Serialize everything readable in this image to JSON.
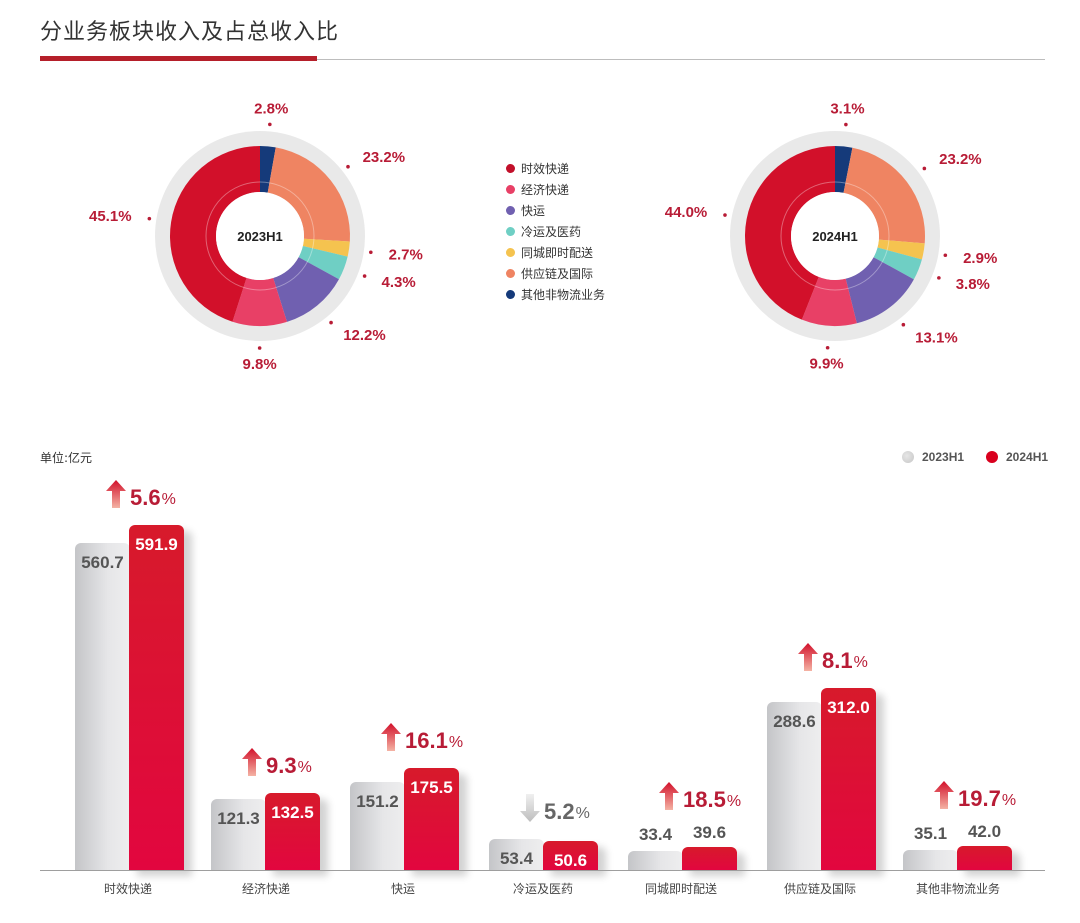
{
  "header": {
    "title": "分业务板块收入及占总收入比"
  },
  "colors": {
    "accent": "#b51f2a",
    "bar_2023": "#d0d0d2",
    "bar_2024": "#dc0a35",
    "label_red": "#b81c36",
    "segments": [
      "#d2102a",
      "#e84066",
      "#7060b0",
      "#6fcfc4",
      "#f5c34f",
      "#ef8462",
      "#153a7a"
    ]
  },
  "legend": {
    "items": [
      {
        "label": "时效快递",
        "color": "#c2102a"
      },
      {
        "label": "经济快递",
        "color": "#e84066"
      },
      {
        "label": "快运",
        "color": "#7060b0"
      },
      {
        "label": "冷运及医药",
        "color": "#6fcfc4"
      },
      {
        "label": "同城即时配送",
        "color": "#f5c34f"
      },
      {
        "label": "供应链及国际",
        "color": "#ef8462"
      },
      {
        "label": "其他非物流业务",
        "color": "#153a7a"
      }
    ]
  },
  "bar_section": {
    "unit": "单位:亿元",
    "legend": [
      {
        "label": "2023H1",
        "color": "#d0d0d2"
      },
      {
        "label": "2024H1",
        "color": "#dc0a35"
      }
    ]
  },
  "chart_data": [
    {
      "type": "pie",
      "title": "2023H1",
      "categories": [
        "时效快递",
        "经济快递",
        "快运",
        "冷运及医药",
        "同城即时配送",
        "供应链及国际",
        "其他非物流业务"
      ],
      "values": [
        45.1,
        9.8,
        12.2,
        4.3,
        2.7,
        23.2,
        2.8
      ],
      "labels": [
        "45.1%",
        "9.8%",
        "12.2%",
        "4.3%",
        "2.7%",
        "23.2%",
        "2.8%"
      ],
      "center_label": "2023H1",
      "style": "donut"
    },
    {
      "type": "pie",
      "title": "2024H1",
      "categories": [
        "时效快递",
        "经济快递",
        "快运",
        "冷运及医药",
        "同城即时配送",
        "供应链及国际",
        "其他非物流业务"
      ],
      "values": [
        44.0,
        9.9,
        13.1,
        3.8,
        2.9,
        23.2,
        3.1
      ],
      "labels": [
        "44.0%",
        "9.9%",
        "13.1%",
        "3.8%",
        "2.9%",
        "23.2%",
        "3.1%"
      ],
      "center_label": "2024H1",
      "style": "donut"
    },
    {
      "type": "bar",
      "title": "分业务板块收入",
      "ylabel": "单位:亿元",
      "categories": [
        "时效快递",
        "经济快递",
        "快运",
        "冷运及医药",
        "同城即时配送",
        "供应链及国际",
        "其他非物流业务"
      ],
      "series": [
        {
          "name": "2023H1",
          "values": [
            560.7,
            121.3,
            151.2,
            53.4,
            33.4,
            288.6,
            35.1
          ]
        },
        {
          "name": "2024H1",
          "values": [
            591.9,
            132.5,
            175.5,
            50.6,
            39.6,
            312.0,
            42.0
          ]
        }
      ],
      "growth": [
        {
          "direction": "up",
          "value": "5.6"
        },
        {
          "direction": "up",
          "value": "9.3"
        },
        {
          "direction": "up",
          "value": "16.1"
        },
        {
          "direction": "down",
          "value": "5.2"
        },
        {
          "direction": "up",
          "value": "18.5"
        },
        {
          "direction": "up",
          "value": "8.1"
        },
        {
          "direction": "up",
          "value": "19.7"
        }
      ],
      "growth_unit": "%",
      "value_labels_2023": [
        "560.7",
        "121.3",
        "151.2",
        "53.4",
        "33.4",
        "288.6",
        "35.1"
      ],
      "value_labels_2024": [
        "591.9",
        "132.5",
        "175.5",
        "50.6",
        "39.6",
        "312.0",
        "42.0"
      ],
      "grid": false,
      "legend_position": "top-right"
    }
  ]
}
